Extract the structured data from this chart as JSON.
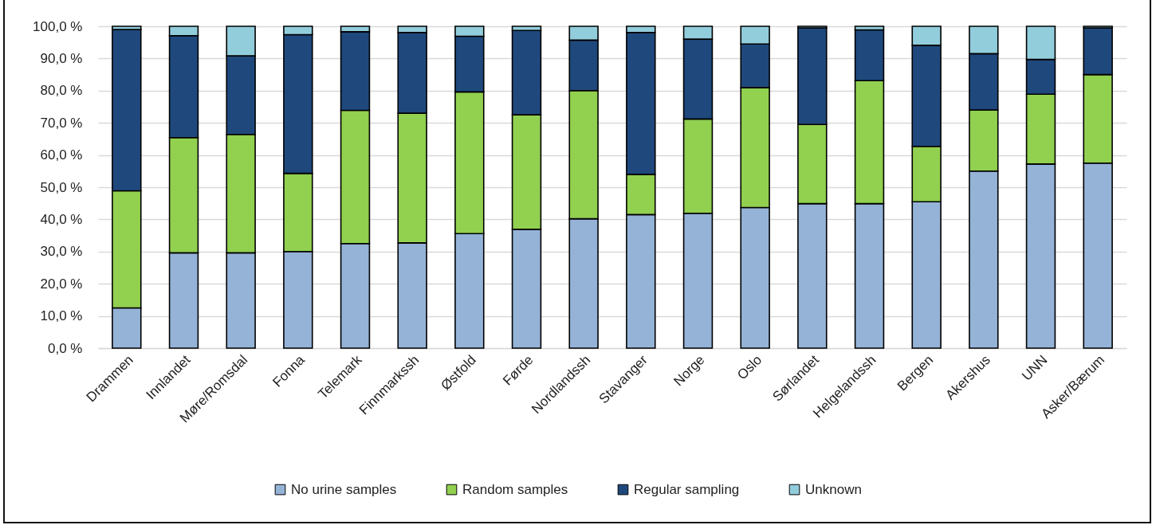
{
  "chart_data": {
    "type": "bar",
    "stacked": true,
    "categories": [
      "Drammen",
      "Innlandet",
      "Møre/Romsdal",
      "Fonna",
      "Telemark",
      "Finnmarkssh",
      "Østfold",
      "Førde",
      "Nordlandssh",
      "Stavanger",
      "Norge",
      "Oslo",
      "Sørlandet",
      "Helgelandssh",
      "Bergen",
      "Akershus",
      "UNN",
      "Asker/Bærum"
    ],
    "series": [
      {
        "name": "No urine samples",
        "color": "#95b3d7",
        "values": [
          12.5,
          29.6,
          29.6,
          30.0,
          32.5,
          32.7,
          35.6,
          36.9,
          40.2,
          41.5,
          41.9,
          43.7,
          44.9,
          44.9,
          45.5,
          55.0,
          57.2,
          57.5
        ]
      },
      {
        "name": "Random samples",
        "color": "#92d050",
        "values": [
          36.4,
          35.8,
          36.8,
          24.3,
          41.4,
          40.3,
          44.0,
          35.6,
          39.8,
          12.5,
          29.3,
          37.2,
          24.6,
          38.2,
          17.2,
          19.0,
          21.7,
          27.5
        ]
      },
      {
        "name": "Regular sampling",
        "color": "#1f497d",
        "values": [
          50.1,
          31.7,
          24.4,
          43.1,
          24.4,
          25.1,
          17.3,
          26.2,
          15.7,
          44.1,
          24.8,
          13.6,
          30.0,
          15.8,
          31.4,
          17.5,
          10.8,
          14.5
        ]
      },
      {
        "name": "Unknown",
        "color": "#92cddc",
        "values": [
          1.0,
          2.9,
          9.2,
          2.6,
          1.7,
          1.9,
          3.1,
          1.3,
          4.3,
          1.9,
          4.0,
          5.5,
          0.5,
          1.1,
          5.9,
          8.5,
          10.3,
          0.5
        ]
      }
    ],
    "ylim": [
      0,
      100
    ],
    "yticks": [
      {
        "value": 0,
        "label": "0,0 %"
      },
      {
        "value": 10,
        "label": "10,0 %"
      },
      {
        "value": 20,
        "label": "20,0 %"
      },
      {
        "value": 30,
        "label": "30,0 %"
      },
      {
        "value": 40,
        "label": "40,0 %"
      },
      {
        "value": 50,
        "label": "50,0 %"
      },
      {
        "value": 60,
        "label": "60,0 %"
      },
      {
        "value": 70,
        "label": "70,0 %"
      },
      {
        "value": 80,
        "label": "80,0 %"
      },
      {
        "value": 90,
        "label": "90,0 %"
      },
      {
        "value": 100,
        "label": "100,0 %"
      }
    ],
    "grid": "y",
    "legend": "bottom"
  }
}
